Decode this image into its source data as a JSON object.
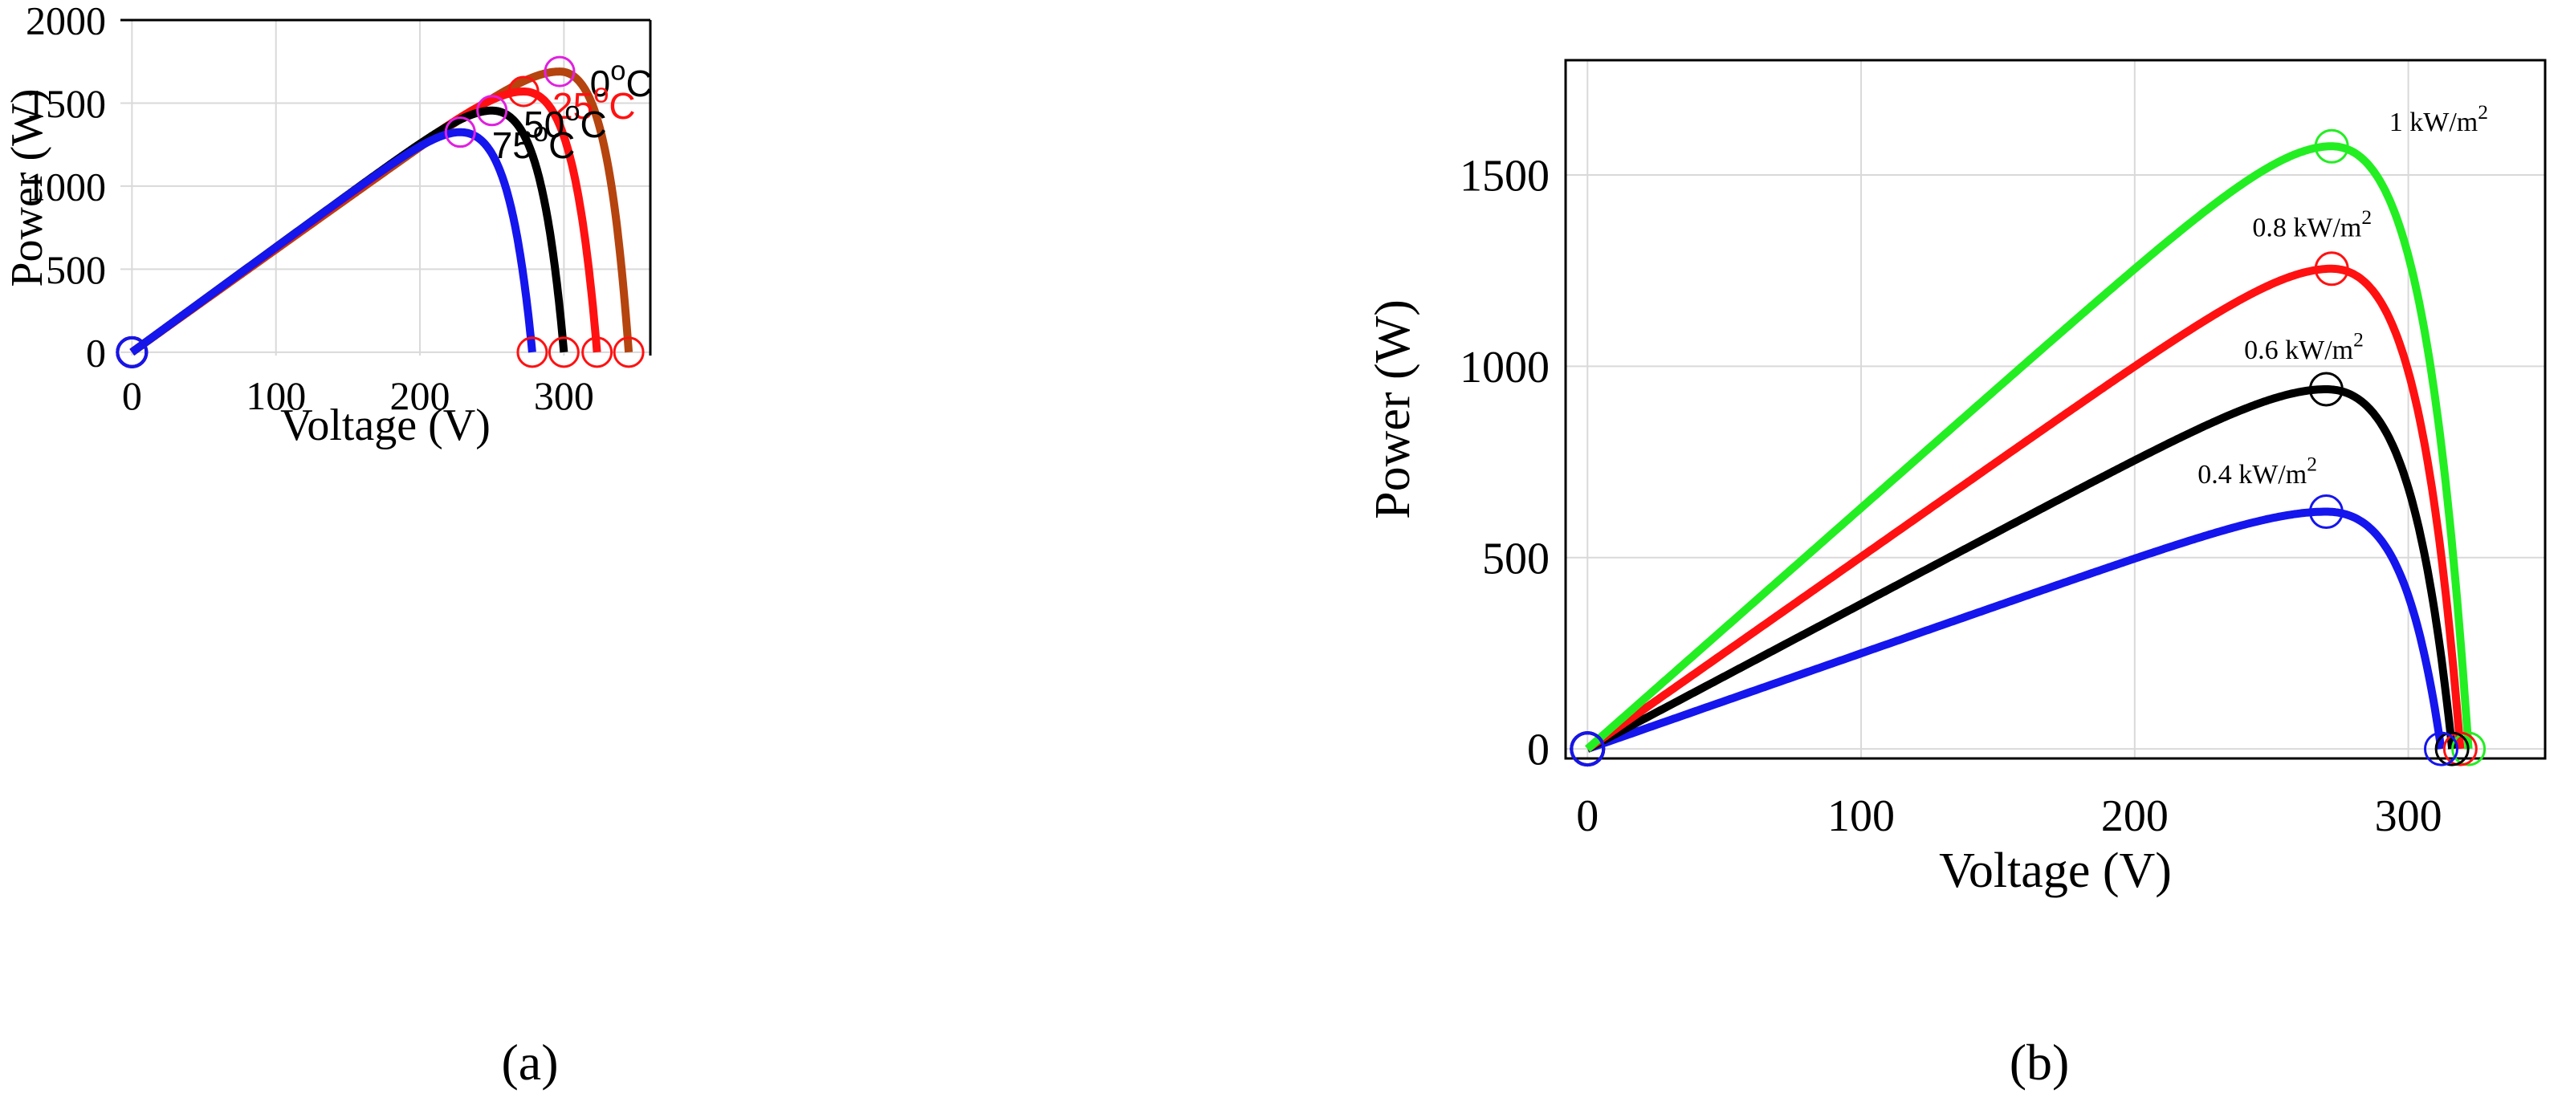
{
  "chart_data": [
    {
      "panel": "a",
      "caption": "(a)",
      "type": "line",
      "title": "",
      "xlabel": "Voltage (V)",
      "ylabel": "Power (W)",
      "xlim": [
        -8,
        360
      ],
      "ylim": [
        -20,
        2000
      ],
      "xticks": [
        0,
        100,
        200,
        300
      ],
      "xtick_labels": [
        "0",
        "100",
        "200",
        "300"
      ],
      "yticks": [
        0,
        500,
        1000,
        1500,
        2000
      ],
      "ytick_labels": [
        "0",
        "500",
        "1000",
        "1500",
        "2000"
      ],
      "grid": true,
      "series": [
        {
          "name": "0 oC",
          "color": "#b5440f",
          "voc": 345,
          "vmp": 297,
          "pmp": 1690,
          "mpp_marker_color": "#e020e0",
          "label": {
            "base": "0",
            "sup": "o",
            "unit": "C",
            "color": "#000000",
            "x": 318,
            "y": 1540
          }
        },
        {
          "name": "25 oC",
          "color": "#ff1111",
          "voc": 323,
          "vmp": 272,
          "pmp": 1570,
          "mpp_marker_color": "#ff1111",
          "label": {
            "base": "25",
            "sup": "o",
            "unit": "C",
            "color": "#ff1111",
            "x": 292,
            "y": 1405
          }
        },
        {
          "name": "50 oC",
          "color": "#000000",
          "voc": 300,
          "vmp": 250,
          "pmp": 1455,
          "mpp_marker_color": "#e020e0",
          "label": {
            "base": "50",
            "sup": "o",
            "unit": "C",
            "color": "#000000",
            "x": 272,
            "y": 1295
          }
        },
        {
          "name": "75 oC",
          "color": "#1515ee",
          "voc": 278,
          "vmp": 228,
          "pmp": 1325,
          "mpp_marker_color": "#e020e0",
          "label": {
            "base": "75",
            "sup": "o",
            "unit": "C",
            "color": "#000000",
            "x": 250,
            "y": 1170
          }
        }
      ]
    },
    {
      "panel": "b",
      "caption": "(b)",
      "type": "line",
      "title": "",
      "xlabel": "Voltage (V)",
      "ylabel": "Power (W)",
      "xlim": [
        -8,
        350
      ],
      "ylim": [
        -25,
        1800
      ],
      "xticks": [
        0,
        100,
        200,
        300
      ],
      "xtick_labels": [
        "0",
        "100",
        "200",
        "300"
      ],
      "yticks": [
        0,
        500,
        1000,
        1500
      ],
      "ytick_labels": [
        "0",
        "500",
        "1000",
        "1500"
      ],
      "grid": true,
      "series": [
        {
          "name": "1 kW/m2",
          "color": "#22ee22",
          "voc": 322,
          "vmp": 272,
          "pmp": 1575,
          "mpp_marker_color": "#22ee22",
          "label": {
            "base": "1 kW/m",
            "sup": "2",
            "unit": "",
            "color": "#000000",
            "x": 293,
            "y": 1615
          }
        },
        {
          "name": "0.8 kW/m2",
          "color": "#ff1111",
          "voc": 319,
          "vmp": 272,
          "pmp": 1255,
          "mpp_marker_color": "#ff1111",
          "label": {
            "base": "0.8 kW/m",
            "sup": "2",
            "unit": "",
            "color": "#000000",
            "x": 243,
            "y": 1340
          }
        },
        {
          "name": "0.6 kW/m2",
          "color": "#000000",
          "voc": 316,
          "vmp": 270,
          "pmp": 940,
          "mpp_marker_color": "#000000",
          "label": {
            "base": "0.6 kW/m",
            "sup": "2",
            "unit": "",
            "color": "#000000",
            "x": 240,
            "y": 1020
          }
        },
        {
          "name": "0.4 kW/m2",
          "color": "#1515ee",
          "voc": 312,
          "vmp": 270,
          "pmp": 620,
          "mpp_marker_color": "#1515ee",
          "label": {
            "base": "0.4 kW/m",
            "sup": "2",
            "unit": "",
            "color": "#000000",
            "x": 223,
            "y": 695
          }
        }
      ]
    }
  ]
}
